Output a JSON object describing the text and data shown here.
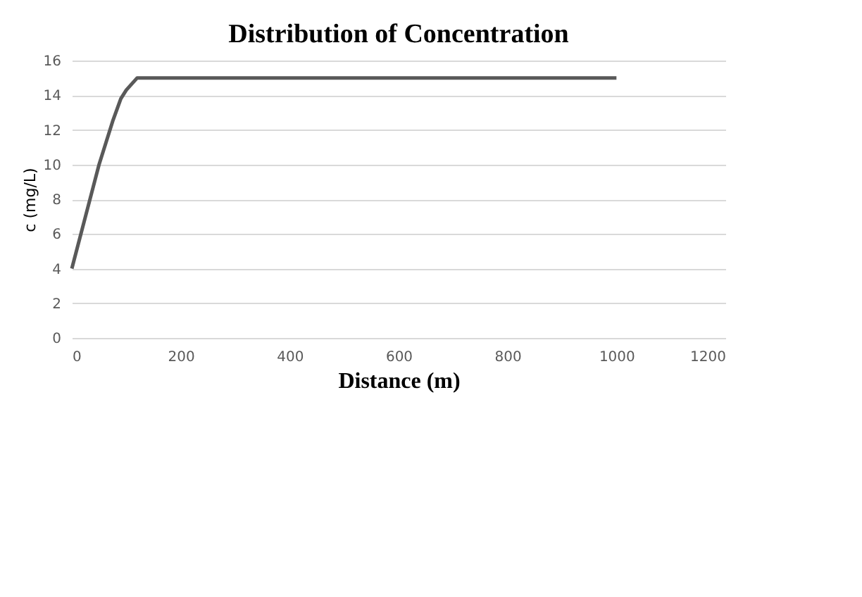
{
  "chart_data": {
    "type": "line",
    "title": "Distribution of Concentration",
    "xlabel": "Distance (m)",
    "ylabel": "c (mg/L)",
    "series": [
      {
        "color": "#595959",
        "x": [
          0,
          25,
          50,
          75,
          90,
          100,
          120,
          1000
        ],
        "values": [
          4,
          7,
          10,
          12.5,
          13.8,
          14.3,
          15,
          15
        ]
      }
    ],
    "xlim": [
      0,
      1200
    ],
    "xticks": [
      0,
      200,
      400,
      600,
      800,
      1000,
      1200
    ],
    "ylim": [
      0,
      16
    ],
    "yticks": [
      0,
      2,
      4,
      6,
      8,
      10,
      12,
      14,
      16
    ],
    "grid": "y",
    "marker": "none",
    "line_style": "solid"
  }
}
